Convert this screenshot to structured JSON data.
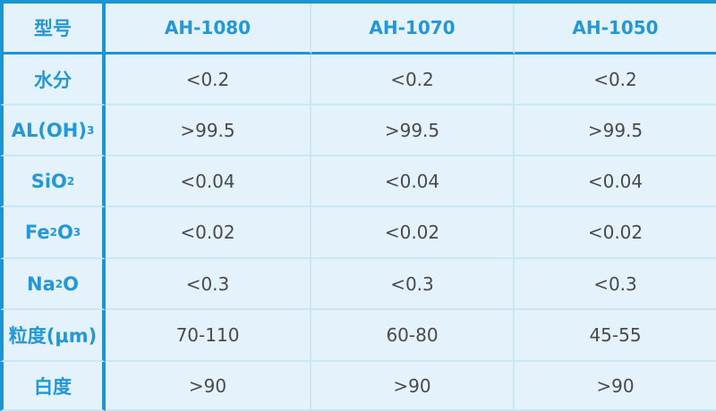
{
  "header": {
    "label": "型号",
    "models": [
      "AH-1080",
      "AH-1070",
      "AH-1050"
    ]
  },
  "rows": [
    {
      "label": [
        "水分"
      ],
      "values": [
        "<0.2",
        "<0.2",
        "<0.2"
      ]
    },
    {
      "label": [
        "AL(OH)",
        "3",
        ""
      ],
      "values": [
        ">99.5",
        ">99.5",
        ">99.5"
      ]
    },
    {
      "label": [
        "SiO",
        "2",
        ""
      ],
      "values": [
        "<0.04",
        "<0.04",
        "<0.04"
      ]
    },
    {
      "label": [
        "Fe",
        "2",
        "O",
        "3"
      ],
      "values": [
        "<0.02",
        "<0.02",
        "<0.02"
      ]
    },
    {
      "label": [
        "Na",
        "2",
        "O"
      ],
      "values": [
        "<0.3",
        "<0.3",
        "<0.3"
      ]
    },
    {
      "label": [
        "粒度(μm)"
      ],
      "values": [
        "70-110",
        "60-80",
        "45-55"
      ]
    },
    {
      "label": [
        "白度"
      ],
      "values": [
        ">90",
        ">90",
        ">90"
      ]
    }
  ],
  "colors": {
    "border": "#1b95d6",
    "label_text": "#2497d6",
    "background": "#e3f2fb",
    "grid": "#cbe6f5",
    "value_text": "#4a4a4a"
  }
}
